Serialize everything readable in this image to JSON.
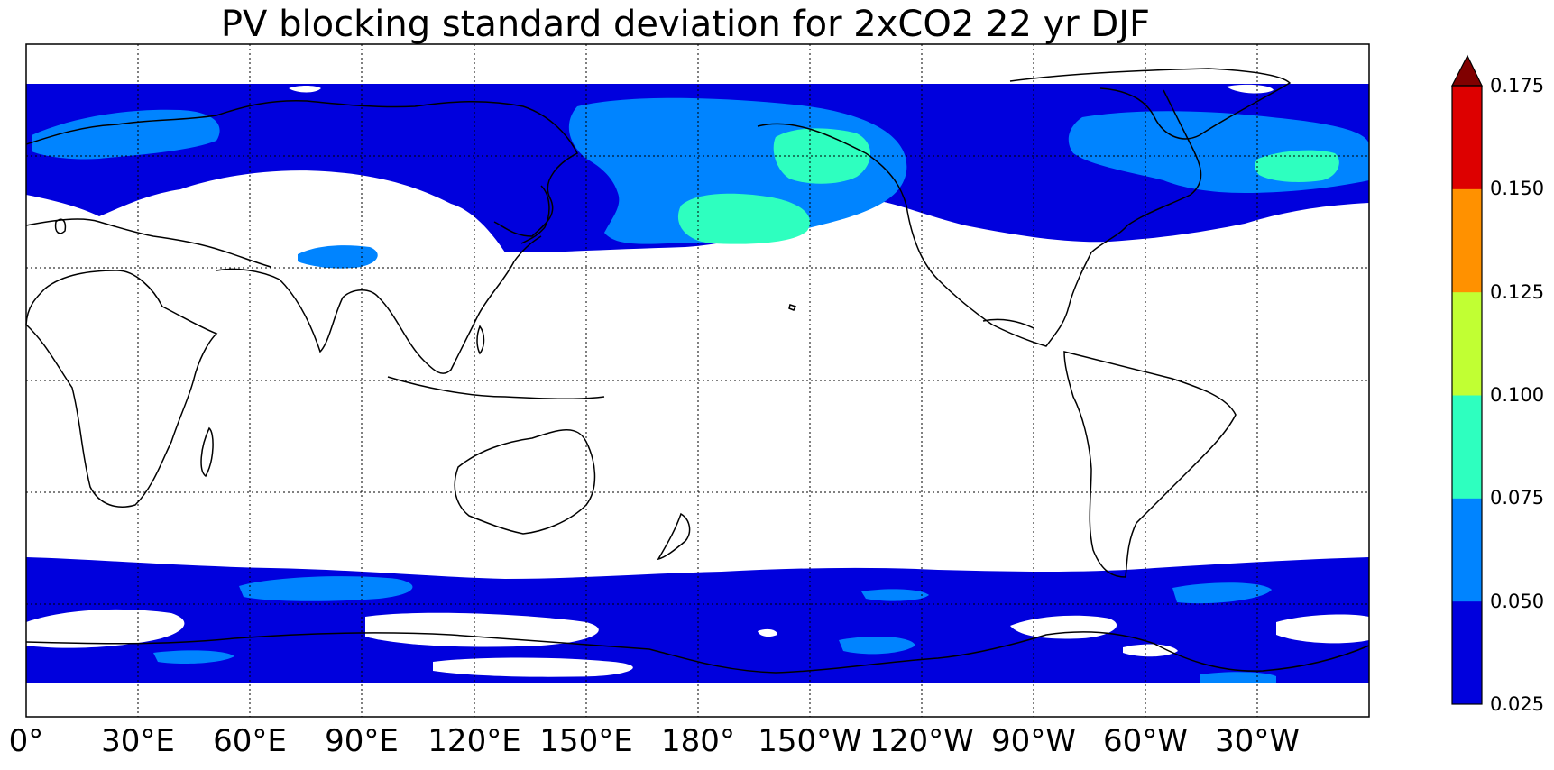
{
  "title": "PV blocking standard deviation for 2xCO2 22 yr DJF",
  "map": {
    "projection": "cylindrical-equidistant",
    "central_longitude": "180°",
    "lon_range_deg_east": [
      0,
      360
    ],
    "lat_range_deg": [
      -90,
      90
    ],
    "gridlines": "dotted",
    "gridline_interval_lon": 30,
    "gridline_interval_lat": 30,
    "coastlines": true,
    "x_tick_labels": [
      "0°",
      "30°E",
      "60°E",
      "90°E",
      "120°E",
      "150°E",
      "180°",
      "150°W",
      "120°W",
      "90°W",
      "60°W",
      "30°W"
    ]
  },
  "colorbar": {
    "orientation": "vertical",
    "extend": "max",
    "levels": [
      0.025,
      0.05,
      0.075,
      0.1,
      0.125,
      0.15,
      0.175
    ],
    "tick_labels": [
      "0.025",
      "0.050",
      "0.075",
      "0.100",
      "0.125",
      "0.150",
      "0.175"
    ],
    "colors": [
      "#0000dd",
      "#0084ff",
      "#2effbf",
      "#c1ff33",
      "#ff9100",
      "#dd0000"
    ],
    "extend_color": "#800000"
  }
}
